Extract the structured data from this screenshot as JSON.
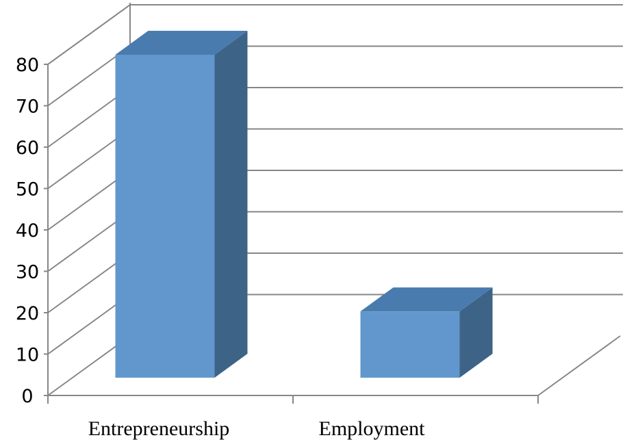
{
  "chart_data": {
    "type": "bar",
    "style": "3d-column",
    "categories": [
      "Entrepreneurship",
      "Employment"
    ],
    "values": [
      78,
      16
    ],
    "title": "",
    "xlabel": "",
    "ylabel": "",
    "ylim": [
      0,
      80
    ],
    "yticks": [
      "0",
      "10",
      "20",
      "30",
      "40",
      "50",
      "60",
      "70",
      "80"
    ],
    "grid": true,
    "legend": "none",
    "colors": {
      "bar_front": "#6197CC",
      "bar_top": "#4A7BAE",
      "bar_side": "#3D6387",
      "grid": "#868686",
      "text": "#000000"
    }
  }
}
